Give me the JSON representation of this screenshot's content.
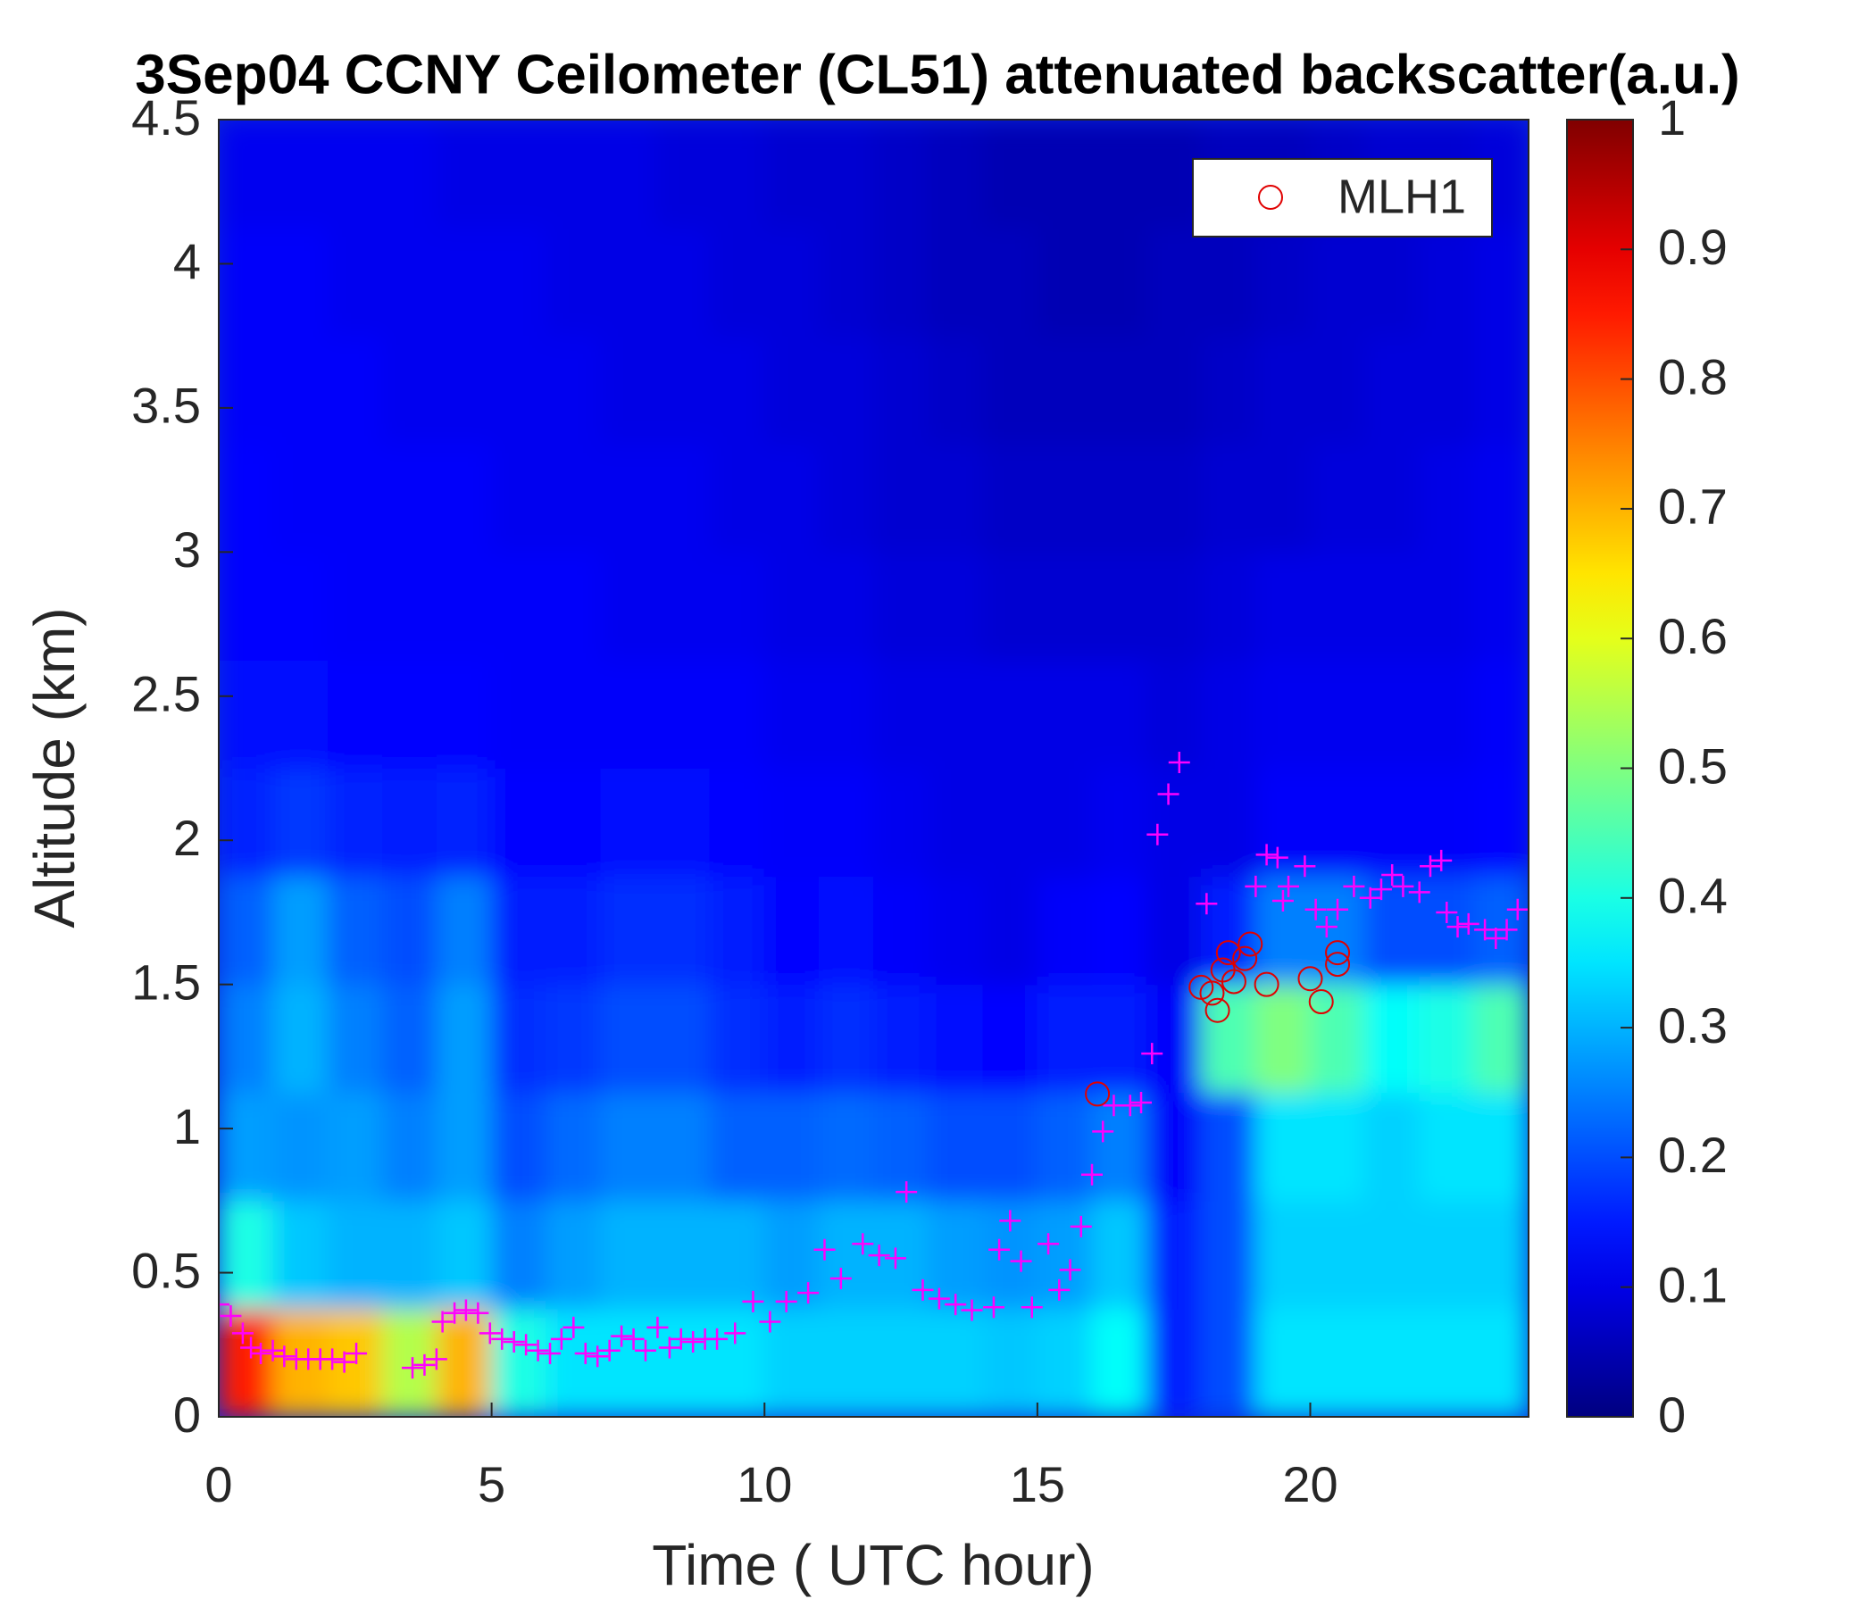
{
  "chart_data": {
    "type": "heatmap",
    "title": "3Sep04 CCNY Ceilometer (CL51) attenuated backscatter(a.u.)",
    "xlabel": "Time ( UTC hour)",
    "ylabel": "Altitude (km)",
    "xlim": [
      0,
      24
    ],
    "ylim": [
      0,
      4.5
    ],
    "xticks": [
      0,
      5,
      10,
      15,
      20
    ],
    "yticks": [
      0,
      0.5,
      1,
      1.5,
      2,
      2.5,
      3,
      3.5,
      4,
      4.5
    ],
    "colormap": "jet",
    "clim": [
      0,
      1
    ],
    "cticks": [
      0,
      0.1,
      0.2,
      0.3,
      0.4,
      0.5,
      0.6,
      0.7,
      0.8,
      0.9,
      1
    ],
    "legend": "upper right",
    "x_bins": [
      0,
      1,
      2,
      3,
      4,
      5,
      6,
      7,
      8,
      9,
      10,
      11,
      12,
      13,
      14,
      15,
      16,
      17,
      18,
      19,
      20,
      21,
      22,
      23,
      24
    ],
    "y_bins": [
      0,
      0.375,
      0.75,
      1.125,
      1.5,
      1.875,
      2.25,
      2.625,
      3,
      3.375,
      3.75,
      4.125,
      4.5
    ],
    "z": [
      [
        0.85,
        0.7,
        0.68,
        0.55,
        0.7,
        0.4,
        0.35,
        0.35,
        0.35,
        0.35,
        0.33,
        0.33,
        0.33,
        0.33,
        0.32,
        0.33,
        0.38,
        0.15,
        0.2,
        0.35,
        0.35,
        0.35,
        0.35,
        0.35
      ],
      [
        0.4,
        0.32,
        0.3,
        0.3,
        0.32,
        0.25,
        0.28,
        0.3,
        0.3,
        0.3,
        0.28,
        0.3,
        0.3,
        0.28,
        0.27,
        0.28,
        0.32,
        0.15,
        0.2,
        0.33,
        0.33,
        0.33,
        0.33,
        0.33
      ],
      [
        0.28,
        0.27,
        0.28,
        0.25,
        0.28,
        0.2,
        0.23,
        0.25,
        0.25,
        0.22,
        0.22,
        0.23,
        0.22,
        0.2,
        0.2,
        0.22,
        0.25,
        0.12,
        0.2,
        0.35,
        0.35,
        0.33,
        0.35,
        0.35
      ],
      [
        0.25,
        0.3,
        0.25,
        0.22,
        0.28,
        0.17,
        0.18,
        0.2,
        0.2,
        0.17,
        0.15,
        0.17,
        0.15,
        0.14,
        0.13,
        0.15,
        0.15,
        0.12,
        0.45,
        0.5,
        0.45,
        0.38,
        0.4,
        0.45
      ],
      [
        0.22,
        0.28,
        0.22,
        0.2,
        0.25,
        0.15,
        0.15,
        0.17,
        0.17,
        0.15,
        0.13,
        0.14,
        0.12,
        0.11,
        0.1,
        0.12,
        0.13,
        0.1,
        0.15,
        0.25,
        0.25,
        0.2,
        0.2,
        0.22
      ],
      [
        0.16,
        0.18,
        0.16,
        0.15,
        0.16,
        0.13,
        0.13,
        0.14,
        0.14,
        0.13,
        0.12,
        0.12,
        0.11,
        0.1,
        0.1,
        0.1,
        0.11,
        0.1,
        0.1,
        0.12,
        0.12,
        0.12,
        0.12,
        0.13
      ],
      [
        0.14,
        0.14,
        0.13,
        0.13,
        0.13,
        0.12,
        0.12,
        0.12,
        0.12,
        0.12,
        0.11,
        0.11,
        0.1,
        0.1,
        0.1,
        0.1,
        0.1,
        0.09,
        0.1,
        0.11,
        0.11,
        0.11,
        0.11,
        0.12
      ],
      [
        0.13,
        0.13,
        0.12,
        0.12,
        0.12,
        0.12,
        0.12,
        0.11,
        0.11,
        0.11,
        0.1,
        0.1,
        0.09,
        0.09,
        0.08,
        0.08,
        0.08,
        0.08,
        0.09,
        0.1,
        0.1,
        0.1,
        0.1,
        0.11
      ],
      [
        0.13,
        0.12,
        0.12,
        0.12,
        0.12,
        0.11,
        0.11,
        0.11,
        0.11,
        0.1,
        0.1,
        0.09,
        0.08,
        0.08,
        0.07,
        0.07,
        0.07,
        0.07,
        0.08,
        0.08,
        0.09,
        0.09,
        0.1,
        0.11
      ],
      [
        0.12,
        0.12,
        0.12,
        0.11,
        0.11,
        0.11,
        0.11,
        0.1,
        0.1,
        0.1,
        0.09,
        0.09,
        0.08,
        0.07,
        0.06,
        0.06,
        0.06,
        0.06,
        0.07,
        0.08,
        0.08,
        0.09,
        0.09,
        0.1
      ],
      [
        0.12,
        0.12,
        0.11,
        0.11,
        0.11,
        0.11,
        0.1,
        0.1,
        0.1,
        0.09,
        0.09,
        0.08,
        0.07,
        0.06,
        0.06,
        0.05,
        0.05,
        0.06,
        0.06,
        0.07,
        0.08,
        0.08,
        0.09,
        0.1
      ],
      [
        0.11,
        0.11,
        0.11,
        0.11,
        0.1,
        0.1,
        0.1,
        0.1,
        0.09,
        0.09,
        0.08,
        0.08,
        0.07,
        0.06,
        0.05,
        0.05,
        0.05,
        0.05,
        0.06,
        0.06,
        0.07,
        0.08,
        0.08,
        0.09
      ]
    ],
    "series": [
      {
        "marker": "+",
        "color": "#ff00ff",
        "x": [
          0,
          0.22,
          0.44,
          0.59,
          0.77,
          0.99,
          1.2,
          1.42,
          1.64,
          1.86,
          2.08,
          2.3,
          2.52,
          3.55,
          3.77,
          3.99,
          4.1,
          4.32,
          4.53,
          4.75,
          4.97,
          5.19,
          5.41,
          5.63,
          5.85,
          6.07,
          6.28,
          6.5,
          6.72,
          6.94,
          7.16,
          7.38,
          7.6,
          7.82,
          8.04,
          8.26,
          8.47,
          8.69,
          8.91,
          9.13,
          9.46,
          9.79,
          10.1,
          10.4,
          10.8,
          11.1,
          11.4,
          11.8,
          12.1,
          12.4,
          12.6,
          12.9,
          13.2,
          13.5,
          13.8,
          14.2,
          14.3,
          14.5,
          14.7,
          14.9,
          15.2,
          15.4,
          15.6,
          15.8,
          16.0,
          16.2,
          16.4,
          16.7,
          16.9,
          17.1,
          17.2,
          17.4,
          17.6,
          18.1,
          19.0,
          19.2,
          19.4,
          19.5,
          19.6,
          19.9,
          20.1,
          20.3,
          20.5,
          20.8,
          21.1,
          21.3,
          21.5,
          21.7,
          22.0,
          22.2,
          22.4,
          22.5,
          22.7,
          22.9,
          23.2,
          23.4,
          23.6,
          23.8
        ],
        "y": [
          0.39,
          0.35,
          0.29,
          0.24,
          0.22,
          0.23,
          0.21,
          0.2,
          0.2,
          0.2,
          0.2,
          0.19,
          0.22,
          0.17,
          0.18,
          0.2,
          0.33,
          0.36,
          0.37,
          0.36,
          0.29,
          0.27,
          0.26,
          0.25,
          0.23,
          0.22,
          0.27,
          0.31,
          0.22,
          0.21,
          0.23,
          0.28,
          0.27,
          0.23,
          0.31,
          0.24,
          0.27,
          0.26,
          0.27,
          0.27,
          0.29,
          0.4,
          0.33,
          0.4,
          0.43,
          0.58,
          0.48,
          0.6,
          0.56,
          0.55,
          0.78,
          0.44,
          0.41,
          0.39,
          0.37,
          0.38,
          0.58,
          0.68,
          0.54,
          0.38,
          0.6,
          0.44,
          0.51,
          0.66,
          0.84,
          0.99,
          1.08,
          1.08,
          1.09,
          1.26,
          2.02,
          2.16,
          2.27,
          1.78,
          1.84,
          1.95,
          1.94,
          1.79,
          1.84,
          1.91,
          1.76,
          1.7,
          1.76,
          1.84,
          1.8,
          1.83,
          1.88,
          1.84,
          1.82,
          1.91,
          1.93,
          1.75,
          1.7,
          1.71,
          1.69,
          1.66,
          1.69,
          1.76
        ]
      },
      {
        "name": "MLH1",
        "marker": "o",
        "color": "#e00000",
        "x": [
          16.1,
          18.0,
          18.2,
          18.3,
          18.4,
          18.5,
          18.6,
          18.8,
          18.9,
          19.2,
          20.0,
          20.2,
          20.5,
          20.5
        ],
        "y": [
          1.12,
          1.49,
          1.47,
          1.41,
          1.55,
          1.61,
          1.51,
          1.59,
          1.64,
          1.5,
          1.52,
          1.44,
          1.57,
          1.61
        ]
      }
    ]
  }
}
